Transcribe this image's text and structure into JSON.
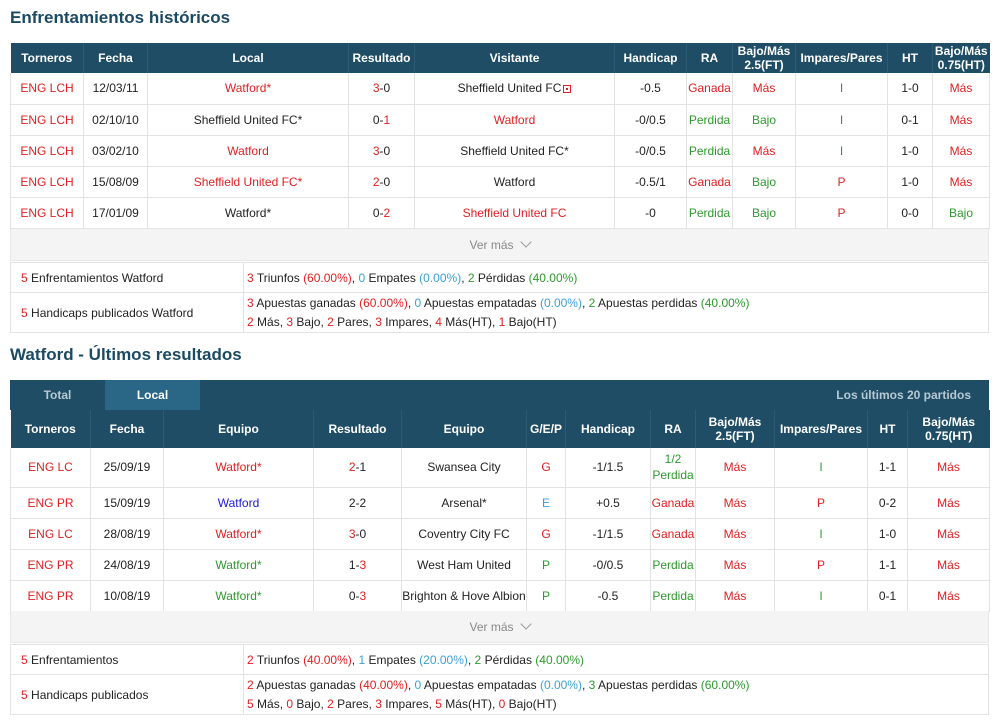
{
  "h2h": {
    "title": "Enfrentamientos históricos",
    "headers": [
      "Torneros",
      "Fecha",
      "Local",
      "Resultado",
      "Visitante",
      "Handicap",
      "RA",
      "Bajo/Más 2.5(FT)",
      "Impares/Pares",
      "HT",
      "Bajo/Más 0.75(HT)"
    ],
    "rows": [
      {
        "torneo": "ENG LCH",
        "fecha": "12/03/11",
        "local": "Watford*",
        "res_l": "3",
        "res_sep": "-",
        "res_v": "0",
        "visitante": "Sheffield United FC",
        "handicap": "-0.5",
        "ra": "Ganada",
        "bm25": "Más",
        "ip": "I",
        "ht": "1-0",
        "bm075": "Más"
      },
      {
        "torneo": "ENG LCH",
        "fecha": "02/10/10",
        "local": "Sheffield United FC*",
        "res_l": "0",
        "res_sep": "-",
        "res_v": "1",
        "visitante": "Watford",
        "handicap": "-0/0.5",
        "ra": "Perdida",
        "bm25": "Bajo",
        "ip": "I",
        "ht": "0-1",
        "bm075": "Más"
      },
      {
        "torneo": "ENG LCH",
        "fecha": "03/02/10",
        "local": "Watford",
        "res_l": "3",
        "res_sep": "-",
        "res_v": "0",
        "visitante": "Sheffield United FC*",
        "handicap": "-0/0.5",
        "ra": "Perdida",
        "bm25": "Más",
        "ip": "I",
        "ht": "1-0",
        "bm075": "Más"
      },
      {
        "torneo": "ENG LCH",
        "fecha": "15/08/09",
        "local": "Sheffield United FC*",
        "res_l": "2",
        "res_sep": "-",
        "res_v": "0",
        "visitante": "Watford",
        "handicap": "-0.5/1",
        "ra": "Ganada",
        "bm25": "Bajo",
        "ip": "P",
        "ht": "1-0",
        "bm075": "Más"
      },
      {
        "torneo": "ENG LCH",
        "fecha": "17/01/09",
        "local": "Watford*",
        "res_l": "0",
        "res_sep": "-",
        "res_v": "2",
        "visitante": "Sheffield United FC",
        "handicap": "-0",
        "ra": "Perdida",
        "bm25": "Bajo",
        "ip": "P",
        "ht": "0-0",
        "bm075": "Bajo"
      }
    ],
    "ver_mas": "Ver más",
    "summary": {
      "row1_label": "Enfrentamientos Watford",
      "row1_count": "5",
      "wins": "3",
      "wins_label": "Triunfos",
      "wins_pct": "(60.00%)",
      "draws": "0",
      "draws_label": "Empates",
      "draws_pct": "(0.00%)",
      "losses": "2",
      "losses_label": "Pérdidas",
      "losses_pct": "(40.00%)",
      "row2_label": "Handicaps publicados Watford",
      "row2_count": "5",
      "won": "3",
      "won_label": "Apuestas ganadas",
      "won_pct": "(60.00%)",
      "push": "0",
      "push_label": "Apuestas empatadas",
      "push_pct": "(0.00%)",
      "lost": "2",
      "lost_label": "Apuestas perdidas",
      "lost_pct": "(40.00%)",
      "mas": "2",
      "mas_label": "Más,",
      "bajo": "3",
      "bajo_label": "Bajo,",
      "pares": "2",
      "pares_label": "Pares,",
      "impares": "3",
      "impares_label": "Impares,",
      "masht": "4",
      "masht_label": "Más(HT),",
      "bajoht": "1",
      "bajoht_label": "Bajo(HT)"
    }
  },
  "recent": {
    "title": "Watford - Últimos resultados",
    "tab_total": "Total",
    "tab_local": "Local",
    "tab_right": "Los últimos 20 partidos",
    "headers": [
      "Torneros",
      "Fecha",
      "Equipo",
      "Resultado",
      "Equipo",
      "G/E/P",
      "Handicap",
      "RA",
      "Bajo/Más 2.5(FT)",
      "Impares/Pares",
      "HT",
      "Bajo/Más 0.75(HT)"
    ],
    "rows": [
      {
        "torneo": "ENG LC",
        "fecha": "25/09/19",
        "equipo1": "Watford*",
        "res_l": "2",
        "res_sep": "-",
        "res_v": "1",
        "equipo2": "Swansea City",
        "gep": "G",
        "handicap": "-1/1.5",
        "ra1": "1/2",
        "ra2": "Perdida",
        "bm25": "Más",
        "ip": "I",
        "ht": "1-1",
        "bm075": "Más"
      },
      {
        "torneo": "ENG PR",
        "fecha": "15/09/19",
        "equipo1": "Watford",
        "res_l": "2",
        "res_sep": "-",
        "res_v": "2",
        "equipo2": "Arsenal*",
        "gep": "E",
        "handicap": "+0.5",
        "ra1": "Ganada",
        "ra2": "",
        "bm25": "Más",
        "ip": "P",
        "ht": "0-2",
        "bm075": "Más"
      },
      {
        "torneo": "ENG LC",
        "fecha": "28/08/19",
        "equipo1": "Watford*",
        "res_l": "3",
        "res_sep": "-",
        "res_v": "0",
        "equipo2": "Coventry City FC",
        "gep": "G",
        "handicap": "-1/1.5",
        "ra1": "Ganada",
        "ra2": "",
        "bm25": "Más",
        "ip": "I",
        "ht": "1-0",
        "bm075": "Más"
      },
      {
        "torneo": "ENG PR",
        "fecha": "24/08/19",
        "equipo1": "Watford*",
        "res_l": "1",
        "res_sep": "-",
        "res_v": "3",
        "equipo2": "West Ham United",
        "gep": "P",
        "handicap": "-0/0.5",
        "ra1": "Perdida",
        "ra2": "",
        "bm25": "Más",
        "ip": "P",
        "ht": "1-1",
        "bm075": "Más"
      },
      {
        "torneo": "ENG PR",
        "fecha": "10/08/19",
        "equipo1": "Watford*",
        "res_l": "0",
        "res_sep": "-",
        "res_v": "3",
        "equipo2": "Brighton & Hove Albion",
        "gep": "P",
        "handicap": "-0.5",
        "ra1": "Perdida",
        "ra2": "",
        "bm25": "Más",
        "ip": "I",
        "ht": "0-1",
        "bm075": "Más"
      }
    ],
    "ver_mas": "Ver más",
    "summary": {
      "row1_label": "Enfrentamientos",
      "row1_count": "5",
      "wins": "2",
      "wins_label": "Triunfos",
      "wins_pct": "(40.00%)",
      "draws": "1",
      "draws_label": "Empates",
      "draws_pct": "(20.00%)",
      "losses": "2",
      "losses_label": "Pérdidas",
      "losses_pct": "(40.00%)",
      "row2_label": "Handicaps publicados",
      "row2_count": "5",
      "won": "2",
      "won_label": "Apuestas ganadas",
      "won_pct": "(40.00%)",
      "push": "0",
      "push_label": "Apuestas empatadas",
      "push_pct": "(0.00%)",
      "lost": "3",
      "lost_label": "Apuestas perdidas",
      "lost_pct": "(60.00%)",
      "mas": "5",
      "mas_label": "Más,",
      "bajo": "0",
      "bajo_label": "Bajo,",
      "pares": "2",
      "pares_label": "Pares,",
      "impares": "3",
      "impares_label": "Impares,",
      "masht": "5",
      "masht_label": "Más(HT),",
      "bajoht": "0",
      "bajoht_label": "Bajo(HT)"
    }
  },
  "colors": {
    "header_bg": "#1f4d65",
    "title": "#1c4a63",
    "red": "#e02020",
    "green": "#2d9a2d",
    "blue": "#3aa0d8",
    "navy": "#1a1ad6"
  }
}
